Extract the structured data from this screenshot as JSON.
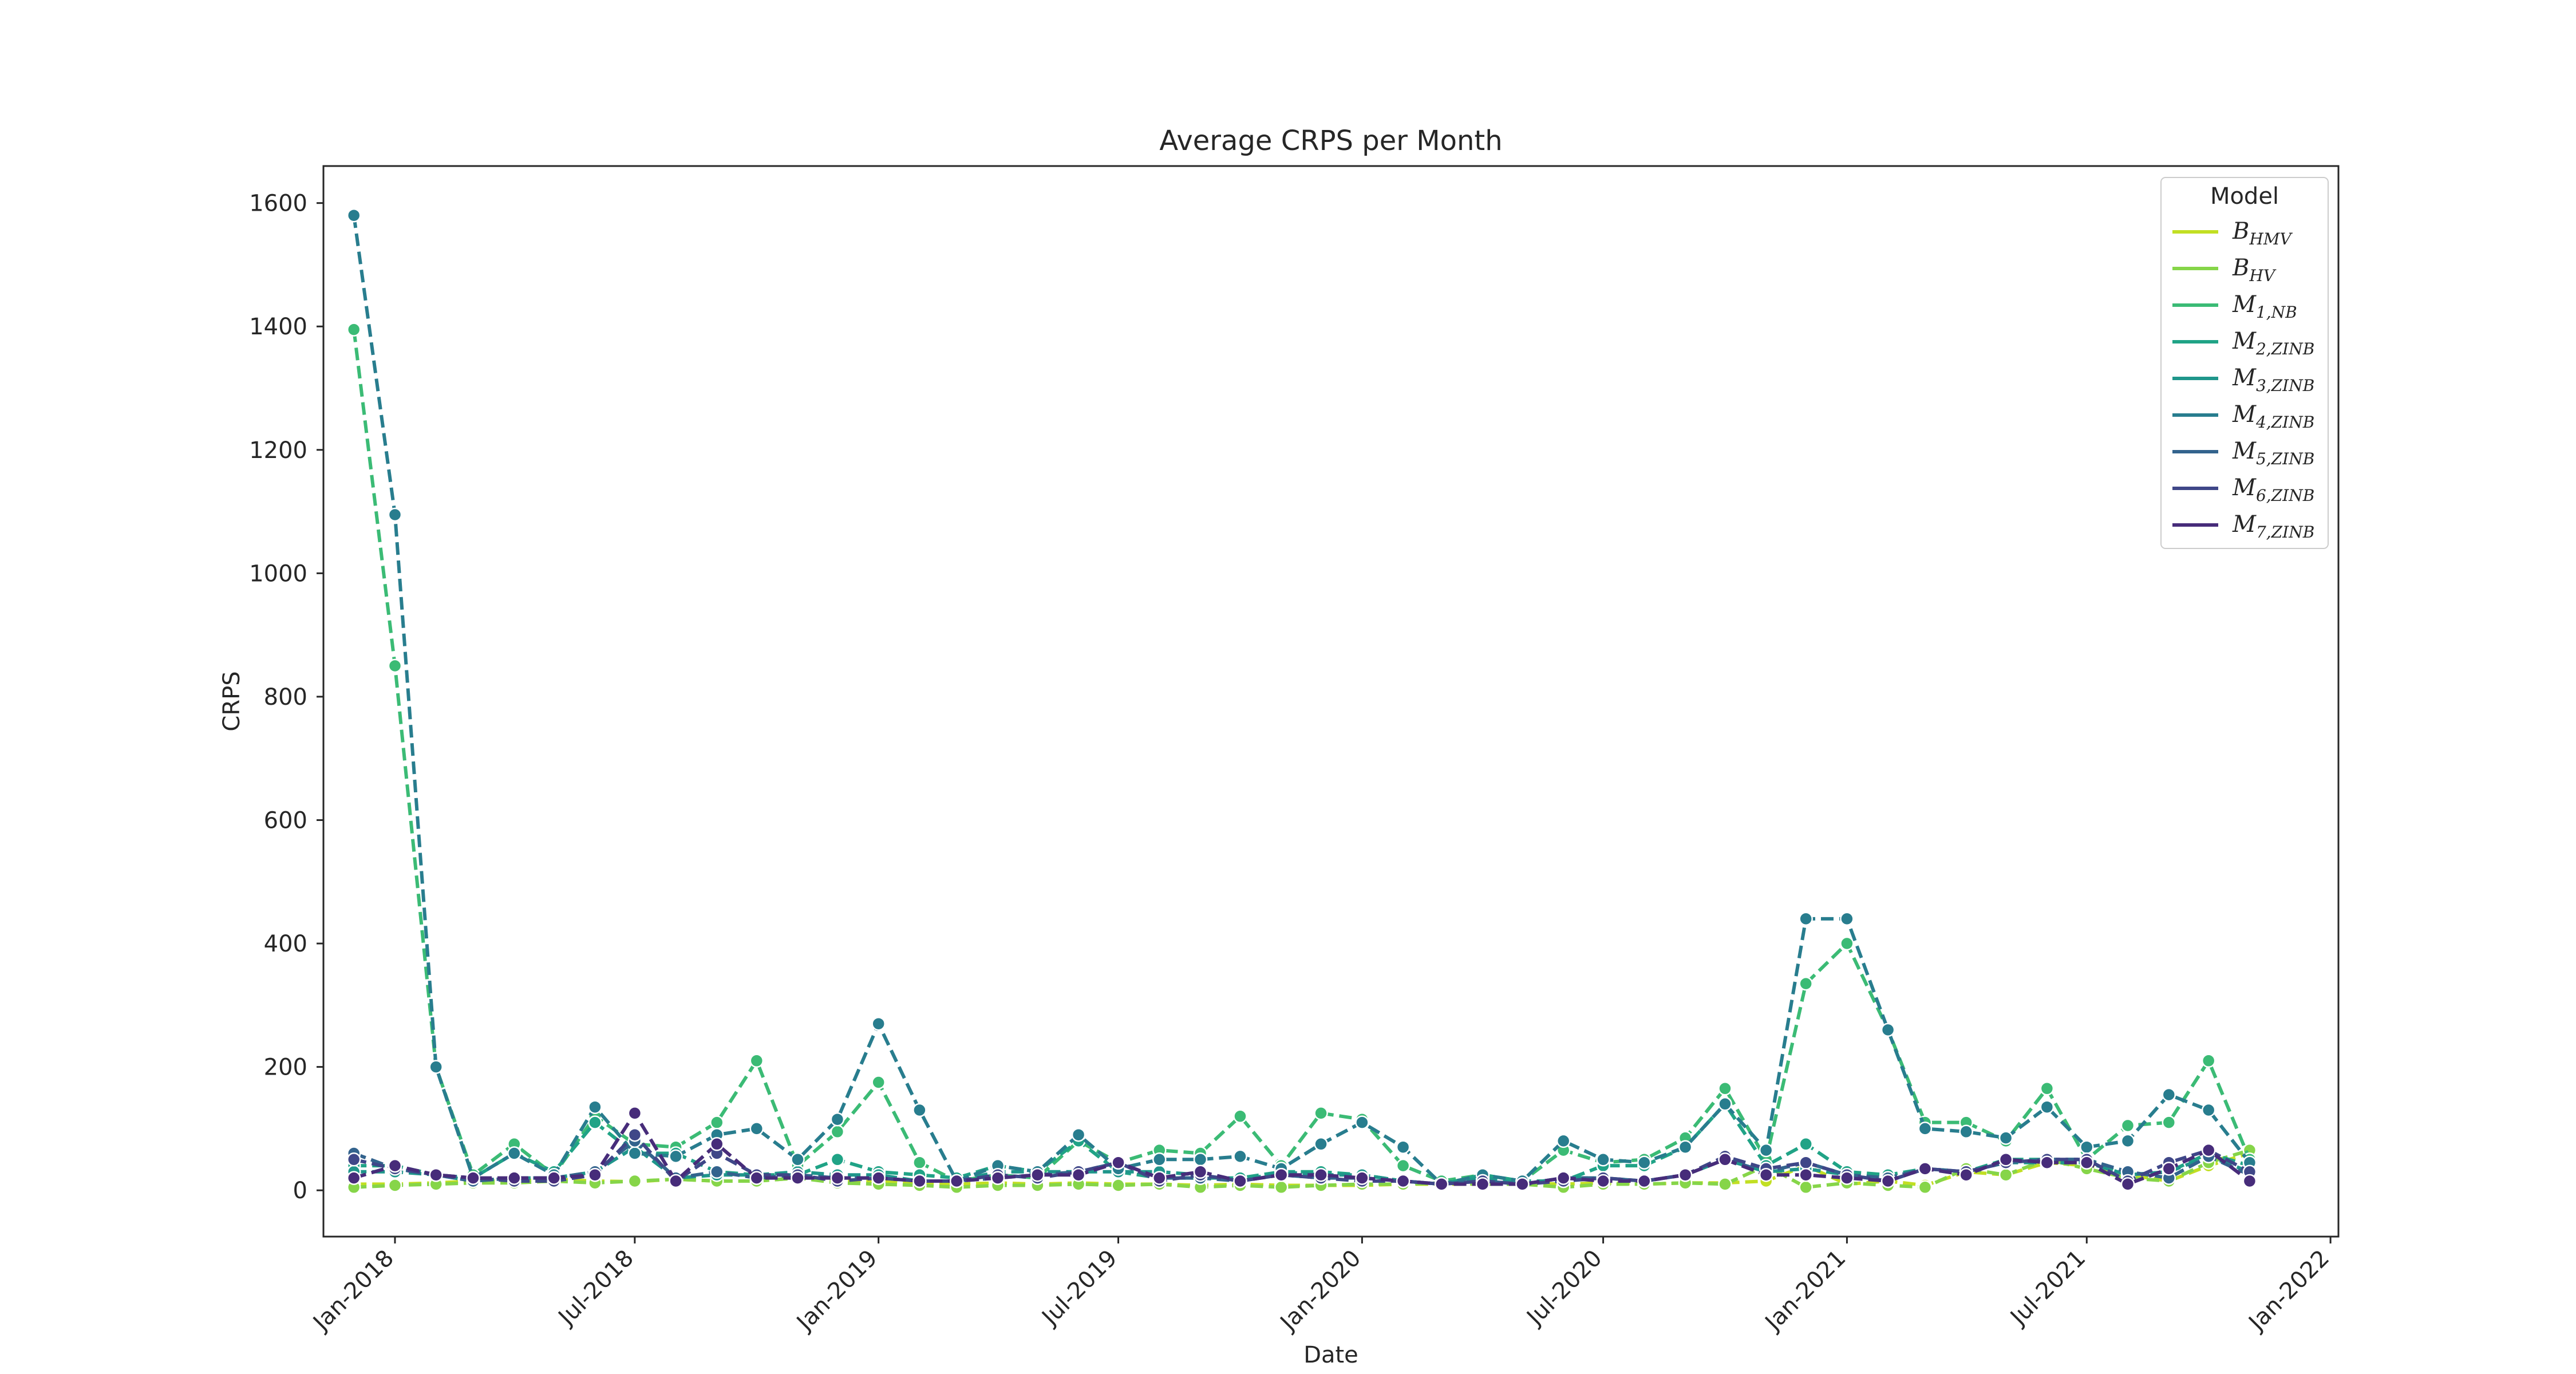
{
  "chart_data": {
    "type": "line",
    "title": "Average CRPS per Month",
    "xlabel": "Date",
    "ylabel": "CRPS",
    "x_ticks": [
      "Jan-2018",
      "Jul-2018",
      "Jan-2019",
      "Jul-2019",
      "Jan-2020",
      "Jul-2020",
      "Jan-2021",
      "Jul-2021",
      "Jan-2022"
    ],
    "y_ticks": [
      0,
      200,
      400,
      600,
      800,
      1000,
      1200,
      1400,
      1600
    ],
    "xlim": [
      "2017-11-08",
      "2022-01-07"
    ],
    "ylim": [
      -75,
      1660
    ],
    "grid": false,
    "legend": {
      "title": "Model",
      "position": "top-right"
    },
    "x": [
      "2017-12",
      "2018-01",
      "2018-02",
      "2018-03",
      "2018-04",
      "2018-05",
      "2018-06",
      "2018-07",
      "2018-08",
      "2018-09",
      "2018-10",
      "2018-11",
      "2018-12",
      "2019-01",
      "2019-02",
      "2019-03",
      "2019-04",
      "2019-05",
      "2019-06",
      "2019-07",
      "2019-08",
      "2019-09",
      "2019-10",
      "2019-11",
      "2019-12",
      "2020-01",
      "2020-02",
      "2020-03",
      "2020-04",
      "2020-05",
      "2020-06",
      "2020-07",
      "2020-08",
      "2020-09",
      "2020-10",
      "2020-11",
      "2020-12",
      "2021-01",
      "2021-02",
      "2021-03",
      "2021-04",
      "2021-05",
      "2021-06",
      "2021-07",
      "2021-08",
      "2021-09",
      "2021-10",
      "2021-11"
    ],
    "series": [
      {
        "name": "HMV",
        "label_main": "B",
        "label_sub": "HMV",
        "color": "#c2df23",
        "values": [
          10,
          10,
          12,
          15,
          15,
          18,
          15,
          14,
          18,
          15,
          15,
          20,
          15,
          15,
          10,
          10,
          12,
          10,
          12,
          10,
          10,
          8,
          10,
          8,
          8,
          8,
          10,
          10,
          10,
          12,
          10,
          12,
          10,
          12,
          12,
          15,
          40,
          10,
          15,
          8,
          30,
          25,
          45,
          40,
          25,
          15,
          40,
          60
        ]
      },
      {
        "name": "HV",
        "label_main": "B",
        "label_sub": "HV",
        "color": "#86d549",
        "values": [
          5,
          8,
          10,
          12,
          12,
          15,
          12,
          15,
          18,
          15,
          15,
          20,
          12,
          10,
          8,
          5,
          8,
          8,
          10,
          8,
          10,
          5,
          8,
          5,
          8,
          10,
          10,
          12,
          10,
          10,
          5,
          10,
          10,
          12,
          10,
          40,
          5,
          12,
          8,
          5,
          35,
          25,
          50,
          35,
          20,
          15,
          45,
          65
        ]
      },
      {
        "name": "M1,NB",
        "label_main": "M",
        "label_sub": "1,NB",
        "color": "#3bbb75",
        "values": [
          1395,
          850,
          200,
          25,
          75,
          25,
          120,
          75,
          70,
          110,
          210,
          40,
          95,
          175,
          45,
          15,
          25,
          20,
          80,
          45,
          65,
          60,
          120,
          40,
          125,
          115,
          40,
          15,
          25,
          15,
          65,
          45,
          50,
          85,
          165,
          50,
          335,
          400,
          260,
          110,
          110,
          80,
          165,
          50,
          105,
          110,
          210,
          50
        ]
      },
      {
        "name": "M2,ZINB",
        "label_main": "M",
        "label_sub": "2,ZINB",
        "color": "#20a386",
        "values": [
          40,
          40,
          25,
          20,
          60,
          30,
          110,
          60,
          60,
          30,
          25,
          25,
          50,
          30,
          25,
          20,
          40,
          30,
          80,
          30,
          20,
          20,
          20,
          30,
          30,
          25,
          15,
          10,
          25,
          15,
          15,
          40,
          40,
          70,
          140,
          40,
          75,
          30,
          25,
          35,
          30,
          50,
          50,
          50,
          25,
          30,
          60,
          40
        ]
      },
      {
        "name": "M3,ZINB",
        "label_main": "M",
        "label_sub": "3,ZINB",
        "color": "#1f968b",
        "values": [
          30,
          30,
          25,
          15,
          20,
          20,
          30,
          70,
          20,
          25,
          25,
          30,
          25,
          25,
          15,
          15,
          30,
          30,
          30,
          30,
          30,
          25,
          15,
          30,
          25,
          25,
          15,
          10,
          20,
          10,
          20,
          20,
          15,
          25,
          50,
          30,
          35,
          25,
          15,
          35,
          30,
          45,
          45,
          45,
          25,
          30,
          55,
          30
        ]
      },
      {
        "name": "M4,ZINB",
        "label_main": "M",
        "label_sub": "4,ZINB",
        "color": "#287d8e",
        "values": [
          1580,
          1095,
          200,
          20,
          60,
          25,
          135,
          60,
          55,
          90,
          100,
          50,
          115,
          270,
          130,
          15,
          40,
          30,
          90,
          35,
          50,
          50,
          55,
          35,
          75,
          110,
          70,
          10,
          25,
          15,
          80,
          50,
          45,
          70,
          140,
          65,
          440,
          440,
          260,
          100,
          95,
          85,
          135,
          70,
          80,
          155,
          130,
          45
        ]
      },
      {
        "name": "M5,ZINB",
        "label_main": "M",
        "label_sub": "5,ZINB",
        "color": "#33638d",
        "values": [
          60,
          35,
          25,
          15,
          20,
          20,
          30,
          80,
          20,
          30,
          20,
          25,
          20,
          20,
          15,
          15,
          20,
          25,
          30,
          45,
          20,
          20,
          15,
          25,
          20,
          20,
          15,
          10,
          15,
          10,
          20,
          20,
          15,
          25,
          50,
          30,
          45,
          25,
          20,
          35,
          30,
          45,
          50,
          50,
          30,
          20,
          55,
          25
        ]
      },
      {
        "name": "M6,ZINB",
        "label_main": "M",
        "label_sub": "6,ZINB",
        "color": "#3f4788",
        "values": [
          50,
          35,
          25,
          20,
          15,
          15,
          25,
          90,
          15,
          60,
          25,
          25,
          15,
          20,
          15,
          15,
          25,
          20,
          30,
          45,
          15,
          25,
          15,
          25,
          20,
          15,
          15,
          10,
          15,
          10,
          15,
          20,
          15,
          25,
          55,
          35,
          45,
          25,
          15,
          35,
          30,
          45,
          50,
          50,
          15,
          45,
          65,
          30
        ]
      },
      {
        "name": "M7,ZINB",
        "label_main": "M",
        "label_sub": "7,ZINB",
        "color": "#472c7a",
        "values": [
          20,
          40,
          25,
          20,
          20,
          20,
          25,
          125,
          15,
          75,
          20,
          20,
          20,
          20,
          15,
          15,
          20,
          25,
          25,
          45,
          20,
          30,
          15,
          25,
          25,
          20,
          15,
          10,
          10,
          10,
          20,
          15,
          15,
          25,
          50,
          25,
          25,
          20,
          15,
          35,
          25,
          50,
          45,
          45,
          10,
          35,
          65,
          15
        ]
      }
    ]
  }
}
